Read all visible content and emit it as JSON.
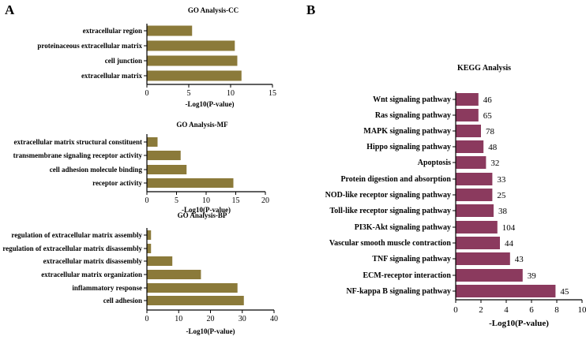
{
  "colors": {
    "go_bar": "#8b7a3a",
    "kegg_bar": "#8b3a5e",
    "axis": "#000000"
  },
  "chart_data": [
    {
      "panel": "A",
      "type": "bar",
      "orientation": "horizontal",
      "title": "GO Analysis-CC",
      "xlabel": "-Log10(P-value)",
      "ylabel": "",
      "xlim": [
        0,
        15
      ],
      "xticks": [
        "0",
        "5",
        "10",
        "15"
      ],
      "categories": [
        "extracellular region",
        "proteinaceous extracellular matrix",
        "cell junction",
        "extracellular matrix"
      ],
      "values": [
        5.4,
        10.5,
        10.8,
        11.3
      ]
    },
    {
      "panel": "",
      "type": "bar",
      "orientation": "horizontal",
      "title": "GO Analysis-MF",
      "xlabel": "-Log10(P-value)",
      "ylabel": "",
      "xlim": [
        0,
        20
      ],
      "xticks": [
        "0",
        "5",
        "10",
        "15",
        "20"
      ],
      "categories": [
        "extracellular matrix structural constituent",
        "transmembrane signaling receptor activity",
        "cell adhesion molecule binding",
        "receptor activity"
      ],
      "values": [
        1.8,
        5.7,
        6.7,
        14.6
      ]
    },
    {
      "panel": "",
      "type": "bar",
      "orientation": "horizontal",
      "title": "GO Analysis-BP",
      "xlabel": "-Log10(P-value)",
      "ylabel": "",
      "xlim": [
        0,
        40
      ],
      "xticks": [
        "0",
        "10",
        "20",
        "30",
        "40"
      ],
      "categories": [
        "regulation of extracellular matrix assembly",
        "regulation of extracellular matrix disassembly",
        "extracellular matrix disassembly",
        "extracellular matrix organization",
        "inflammatory response",
        "cell adhesion"
      ],
      "values": [
        1.3,
        1.3,
        8.0,
        17.0,
        28.5,
        30.5
      ]
    },
    {
      "panel": "B",
      "type": "bar",
      "orientation": "horizontal",
      "title": "KEGG Analysis",
      "xlabel": "-Log10(P-value)",
      "ylabel": "",
      "xlim": [
        0,
        10
      ],
      "xticks": [
        "0",
        "2",
        "4",
        "6",
        "8",
        "10"
      ],
      "categories": [
        "Wnt signaling pathway",
        "Ras signaling pathway",
        "MAPK signaling pathway",
        "Hippo signaling pathway",
        "Apoptosis",
        "Protein digestion and absorption",
        "NOD-like receptor signaling pathway",
        "Toll-like receptor signaling pathway",
        "PI3K-Akt signaling pathway",
        "Vascular smooth muscle contraction",
        "TNF signaling pathway",
        "ECM-receptor interaction",
        "NF-kappa B signaling pathway"
      ],
      "values": [
        1.8,
        1.8,
        2.0,
        2.2,
        2.4,
        2.9,
        2.9,
        3.0,
        3.3,
        3.5,
        4.3,
        5.3,
        7.9
      ],
      "counts": [
        "46",
        "65",
        "78",
        "48",
        "32",
        "33",
        "25",
        "38",
        "104",
        "44",
        "43",
        "39",
        "45"
      ]
    }
  ]
}
